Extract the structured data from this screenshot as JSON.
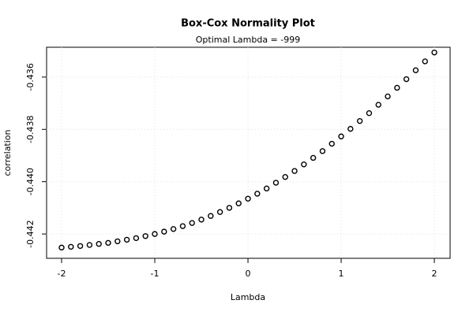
{
  "chart_data": {
    "type": "scatter",
    "title": "Box-Cox Normality Plot",
    "subtitle": "Optimal Lambda = -999",
    "x_label": "Lambda",
    "y_label": "correlation",
    "x": [
      -2,
      -1.9,
      -1.8,
      -1.7,
      -1.6,
      -1.5,
      -1.4,
      -1.3,
      -1.2,
      -1.1,
      -1,
      -0.9,
      -0.8,
      -0.7,
      -0.6,
      -0.5,
      -0.4,
      -0.3,
      -0.2,
      -0.1,
      0,
      0.1,
      0.2,
      0.3,
      0.4,
      0.5,
      0.6,
      0.7,
      0.8,
      0.9,
      1,
      1.1,
      1.2,
      1.3,
      1.4,
      1.5,
      1.6,
      1.7,
      1.8,
      1.9,
      2
    ],
    "values": [
      -0.44252,
      -0.44249,
      -0.44246,
      -0.44242,
      -0.44238,
      -0.44234,
      -0.44228,
      -0.44222,
      -0.44216,
      -0.44208,
      -0.442,
      -0.44191,
      -0.44181,
      -0.4417,
      -0.44158,
      -0.44145,
      -0.44131,
      -0.44116,
      -0.441,
      -0.44083,
      -0.44065,
      -0.44046,
      -0.44026,
      -0.44004,
      -0.43982,
      -0.43959,
      -0.43934,
      -0.43909,
      -0.43883,
      -0.43855,
      -0.43827,
      -0.43798,
      -0.43768,
      -0.43738,
      -0.43706,
      -0.43674,
      -0.43641,
      -0.43608,
      -0.43574,
      -0.4354,
      -0.43506
    ],
    "color": "#000000",
    "xlim": [
      -2.161,
      2.169
    ],
    "ylim": [
      -0.44293,
      -0.43486
    ],
    "xticks": [
      -2,
      -1,
      0,
      1,
      2
    ],
    "yticks": [
      {
        "value": -0.442,
        "label": "-0.442"
      },
      {
        "value": -0.44,
        "label": "-0.440"
      },
      {
        "value": -0.438,
        "label": "-0.438"
      },
      {
        "value": -0.436,
        "label": "-0.436"
      }
    ],
    "grid": true
  }
}
